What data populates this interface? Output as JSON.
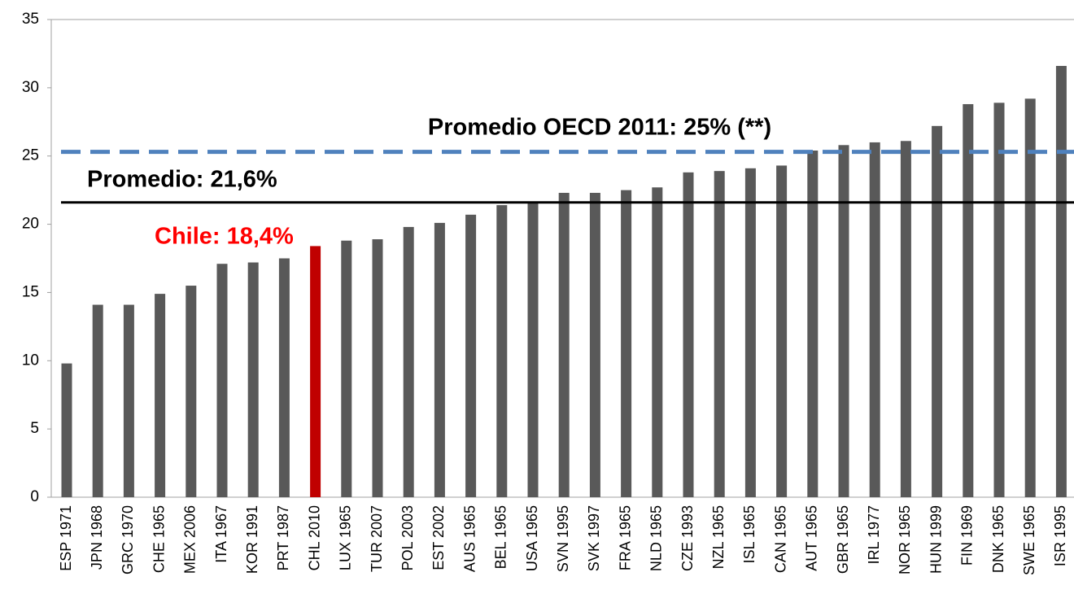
{
  "chart_data": {
    "type": "bar",
    "categories": [
      "ESP 1971",
      "JPN 1968",
      "GRC 1970",
      "CHE 1965",
      "MEX 2006",
      "ITA 1967",
      "KOR 1991",
      "PRT 1987",
      "CHL 2010",
      "LUX 1965",
      "TUR 2007",
      "POL 2003",
      "EST 2002",
      "AUS 1965",
      "BEL 1965",
      "USA 1965",
      "SVN 1995",
      "SVK 1997",
      "FRA 1965",
      "NLD 1965",
      "CZE 1993",
      "NZL 1965",
      "ISL 1965",
      "CAN 1965",
      "AUT 1965",
      "GBR 1965",
      "IRL 1977",
      "NOR 1965",
      "HUN 1999",
      "FIN 1969",
      "DNK 1965",
      "SWE 1965",
      "ISR 1995"
    ],
    "values": [
      9.8,
      14.1,
      14.1,
      14.9,
      15.5,
      17.1,
      17.2,
      17.5,
      18.4,
      18.8,
      18.9,
      19.8,
      20.1,
      20.7,
      21.4,
      21.6,
      22.3,
      22.3,
      22.5,
      22.7,
      23.8,
      23.9,
      24.1,
      24.3,
      25.4,
      25.8,
      26.0,
      26.1,
      27.2,
      28.8,
      28.9,
      29.2,
      31.6
    ],
    "colors": [
      "#595959",
      "#595959",
      "#595959",
      "#595959",
      "#595959",
      "#595959",
      "#595959",
      "#595959",
      "#c00000",
      "#595959",
      "#595959",
      "#595959",
      "#595959",
      "#595959",
      "#595959",
      "#595959",
      "#595959",
      "#595959",
      "#595959",
      "#595959",
      "#595959",
      "#595959",
      "#595959",
      "#595959",
      "#595959",
      "#595959",
      "#595959",
      "#595959",
      "#595959",
      "#595959",
      "#595959",
      "#595959",
      "#595959"
    ],
    "ylim": [
      0,
      35
    ],
    "yticks": [
      0,
      5,
      10,
      15,
      20,
      25,
      30,
      35
    ],
    "reference_lines": [
      {
        "value": 25.3,
        "label": "Promedio OECD 2011: 25% (**)",
        "color": "#4f81bd",
        "style": "dashed"
      },
      {
        "value": 21.6,
        "label": "Promedio: 21,6%",
        "color": "#000000",
        "style": "solid"
      }
    ],
    "annotations": [
      {
        "text": "Chile: 18,4%",
        "color": "#ff0000"
      }
    ]
  }
}
